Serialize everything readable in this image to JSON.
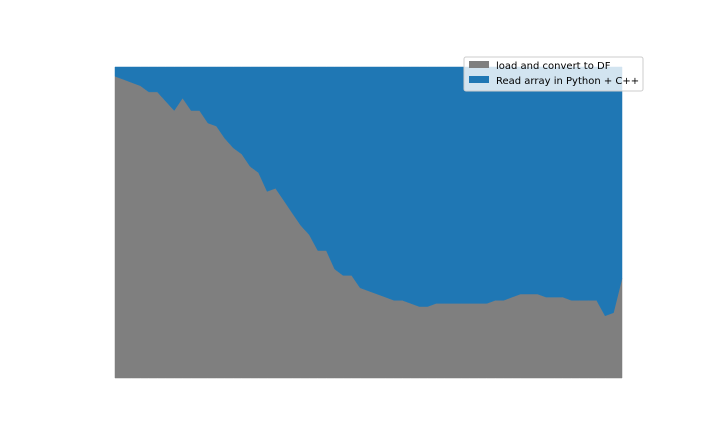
{
  "chart_data": {
    "type": "area",
    "stacked": true,
    "normalized": true,
    "title": "",
    "xlabel": "",
    "ylabel": "",
    "ylim": [
      0,
      1
    ],
    "axes_visible": false,
    "grid": false,
    "legend_position": "top-right",
    "x": [
      0,
      5,
      10,
      15,
      20,
      25,
      30,
      35,
      40,
      45,
      50,
      55,
      60,
      65,
      70,
      75,
      80,
      85,
      90,
      95,
      100,
      105,
      110,
      115,
      120,
      125,
      130,
      135,
      140,
      145,
      150,
      155,
      160,
      165,
      170,
      175,
      180,
      185,
      190,
      195,
      200,
      205,
      210,
      215,
      220,
      225,
      230,
      235,
      240,
      245,
      250,
      255,
      260,
      265,
      270,
      275,
      280,
      285,
      290,
      295,
      300
    ],
    "series": [
      {
        "name": "load and convert to DF",
        "color": "#7f7f7f",
        "values": [
          0.97,
          0.96,
          0.95,
          0.94,
          0.92,
          0.92,
          0.89,
          0.86,
          0.9,
          0.86,
          0.86,
          0.82,
          0.81,
          0.77,
          0.74,
          0.72,
          0.68,
          0.66,
          0.6,
          0.61,
          0.57,
          0.53,
          0.49,
          0.46,
          0.41,
          0.41,
          0.35,
          0.33,
          0.33,
          0.29,
          0.28,
          0.27,
          0.26,
          0.25,
          0.25,
          0.24,
          0.23,
          0.23,
          0.24,
          0.24,
          0.24,
          0.24,
          0.24,
          0.24,
          0.24,
          0.25,
          0.25,
          0.26,
          0.27,
          0.27,
          0.27,
          0.26,
          0.26,
          0.26,
          0.25,
          0.25,
          0.25,
          0.25,
          0.2,
          0.21,
          0.32
        ]
      },
      {
        "name": "Read array in Python + C++",
        "color": "#1f77b4",
        "values": [
          0.03,
          0.04,
          0.05,
          0.06,
          0.08,
          0.08,
          0.11,
          0.14,
          0.1,
          0.14,
          0.14,
          0.18,
          0.19,
          0.23,
          0.26,
          0.28,
          0.32,
          0.34,
          0.4,
          0.39,
          0.43,
          0.47,
          0.51,
          0.54,
          0.59,
          0.59,
          0.65,
          0.67,
          0.67,
          0.71,
          0.72,
          0.73,
          0.74,
          0.75,
          0.75,
          0.76,
          0.77,
          0.77,
          0.76,
          0.76,
          0.76,
          0.76,
          0.76,
          0.76,
          0.76,
          0.75,
          0.75,
          0.74,
          0.73,
          0.73,
          0.73,
          0.74,
          0.74,
          0.74,
          0.75,
          0.75,
          0.75,
          0.75,
          0.8,
          0.79,
          0.68
        ]
      }
    ]
  }
}
